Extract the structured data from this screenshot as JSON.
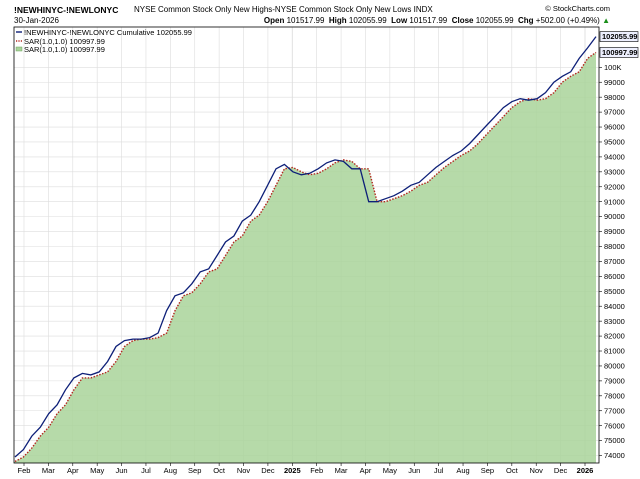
{
  "header": {
    "symbol": "!NEWHINYC-!NEWLONYC",
    "description": "NYSE Common Stock Only New Highs-NYSE Common Stock Only New Lows INDX",
    "date": "30-Jan-2026",
    "open_label": "Open",
    "open": "101517.99",
    "high_label": "High",
    "high": "102055.99",
    "low_label": "Low",
    "low": "101517.99",
    "close_label": "Close",
    "close": "102055.99",
    "chg_label": "Chg",
    "chg": "+502.00 (+0.49%)",
    "chg_arrow": "▲",
    "brand": "© StockCharts.com"
  },
  "legend": {
    "main": "!NEWHINYC-!NEWLONYC Cumulative 102055.99",
    "sar1": "SAR(1.0,1.0) 100997.99",
    "sar2": "SAR(1.0,1.0) 100997.99"
  },
  "price_tags": {
    "main": "102055.99",
    "sar": "100997.99"
  },
  "colors": {
    "main_line": "#0d1f78",
    "sar_line": "#b3261e",
    "area_fill": "#a9d39a",
    "grid": "#dddddd",
    "tag_bg": "#eef0ff"
  },
  "chart_data": {
    "type": "line",
    "x_tick_labels": [
      "Feb",
      "Mar",
      "Apr",
      "May",
      "Jun",
      "Jul",
      "Aug",
      "Sep",
      "Oct",
      "Nov",
      "Dec",
      "2025",
      "Feb",
      "Mar",
      "Apr",
      "May",
      "Jun",
      "Jul",
      "Aug",
      "Sep",
      "Oct",
      "Nov",
      "Dec",
      "2026"
    ],
    "bold_ticks": [
      "2025",
      "2026"
    ],
    "ylim": [
      73500,
      102700
    ],
    "y_ticks": [
      74000,
      75000,
      76000,
      77000,
      78000,
      79000,
      80000,
      81000,
      82000,
      83000,
      84000,
      85000,
      86000,
      87000,
      88000,
      89000,
      90000,
      91000,
      92000,
      93000,
      94000,
      95000,
      96000,
      97000,
      98000,
      99000
    ],
    "y_tick_labels": [
      "74000",
      "75000",
      "76000",
      "77000",
      "78000",
      "79000",
      "80000",
      "81000",
      "82000",
      "83000",
      "84000",
      "85000",
      "86000",
      "87000",
      "88000",
      "89000",
      "90000",
      "91000",
      "92000",
      "93000",
      "94000",
      "95000",
      "96000",
      "97000",
      "98000",
      "99000",
      "100K"
    ],
    "extra_tick": {
      "value": 100000,
      "label": "100K"
    },
    "series": [
      {
        "name": "!NEWHINYC-!NEWLONYC Cumulative",
        "values": [
          73900,
          74400,
          75300,
          75900,
          76800,
          77400,
          78400,
          79200,
          79500,
          79400,
          79600,
          80300,
          81300,
          81700,
          81800,
          81800,
          81900,
          82200,
          83700,
          84700,
          84900,
          85500,
          86300,
          86500,
          87400,
          88300,
          88700,
          89700,
          90100,
          91000,
          92100,
          93200,
          93500,
          93000,
          92800,
          92900,
          93200,
          93600,
          93800,
          93700,
          93200,
          93200,
          91000,
          91000,
          91200,
          91400,
          91700,
          92100,
          92300,
          92800,
          93300,
          93700,
          94100,
          94400,
          94900,
          95500,
          96100,
          96700,
          97300,
          97700,
          97900,
          97800,
          97900,
          98300,
          99000,
          99400,
          99700,
          100600,
          101300,
          102056
        ],
        "style": "solid"
      },
      {
        "name": "SAR(1.0,1.0)",
        "values": [
          73600,
          73900,
          74500,
          75300,
          75900,
          76800,
          77400,
          78400,
          79200,
          79200,
          79400,
          79600,
          80300,
          81300,
          81700,
          81800,
          81800,
          81900,
          82200,
          83700,
          84700,
          84900,
          85500,
          86300,
          86500,
          87400,
          88300,
          88700,
          89700,
          90100,
          91000,
          92100,
          93200,
          93300,
          93000,
          92800,
          92900,
          93200,
          93600,
          93800,
          93700,
          93200,
          93200,
          91000,
          91000,
          91200,
          91400,
          91700,
          92100,
          92300,
          92800,
          93300,
          93700,
          94100,
          94400,
          94900,
          95500,
          96100,
          96700,
          97300,
          97700,
          97900,
          97800,
          97900,
          98300,
          99000,
          99400,
          99700,
          100600,
          100998
        ],
        "style": "dotted"
      }
    ],
    "grid": true,
    "legend_position": "top-left"
  }
}
